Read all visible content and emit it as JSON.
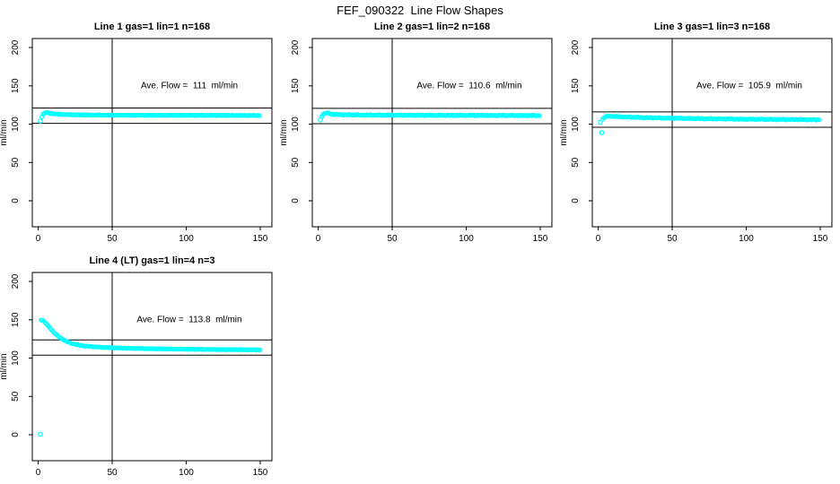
{
  "page_title": "FEF_090322  Line Flow Shapes",
  "colors": {
    "points": "#00ffff",
    "axis": "#000000",
    "background": "#ffffff"
  },
  "chart_data": [
    {
      "type": "scatter",
      "title": "Line 1 gas=1 lin=1 n=168",
      "annotation": "Ave. Flow =  111  ml/min",
      "ave_flow": 111,
      "n": 168,
      "xlabel": "",
      "ylabel": "ml/min",
      "xlim": [
        0,
        150
      ],
      "ylim": [
        0,
        200
      ],
      "xticks": [
        0,
        50,
        100,
        150
      ],
      "yticks": [
        0,
        50,
        100,
        150,
        200
      ],
      "vline_x": 50,
      "hlines": [
        121,
        101
      ],
      "curve_keypoints": [
        [
          2.5,
          110
        ],
        [
          3.5,
          113.5
        ],
        [
          5,
          115
        ],
        [
          7,
          114.6
        ],
        [
          9,
          113.9
        ],
        [
          12,
          113.2
        ],
        [
          16,
          112.7
        ],
        [
          22,
          112.3
        ],
        [
          30,
          112
        ],
        [
          45,
          111.8
        ],
        [
          70,
          111.6
        ],
        [
          100,
          111.5
        ],
        [
          130,
          111.4
        ],
        [
          150,
          111.3
        ]
      ],
      "markers": [
        [
          1.5,
          104
        ]
      ],
      "jitter": 0.35
    },
    {
      "type": "scatter",
      "title": "Line 2 gas=1 lin=2 n=168",
      "annotation": "Ave. Flow =  110.6  ml/min",
      "ave_flow": 110.6,
      "n": 168,
      "xlabel": "",
      "ylabel": "ml/min",
      "xlim": [
        0,
        150
      ],
      "ylim": [
        0,
        200
      ],
      "xticks": [
        0,
        50,
        100,
        150
      ],
      "yticks": [
        0,
        50,
        100,
        150,
        200
      ],
      "vline_x": 50,
      "hlines": [
        120.6,
        100.6
      ],
      "curve_keypoints": [
        [
          2.5,
          110.5
        ],
        [
          4,
          113.8
        ],
        [
          5.5,
          114.6
        ],
        [
          7,
          114.1
        ],
        [
          9,
          113.3
        ],
        [
          12,
          112.7
        ],
        [
          18,
          112.2
        ],
        [
          30,
          111.9
        ],
        [
          50,
          111.7
        ],
        [
          80,
          111.5
        ],
        [
          110,
          111.4
        ],
        [
          150,
          111.2
        ]
      ],
      "markers": [
        [
          1.5,
          105.5
        ]
      ],
      "jitter": 0.55
    },
    {
      "type": "scatter",
      "title": "Line 3 gas=1 lin=3 n=168",
      "annotation": "Ave. Flow =  105.9  ml/min",
      "ave_flow": 105.9,
      "n": 168,
      "xlabel": "",
      "ylabel": "ml/min",
      "xlim": [
        0,
        150
      ],
      "ylim": [
        0,
        200
      ],
      "xticks": [
        0,
        50,
        100,
        150
      ],
      "yticks": [
        0,
        50,
        100,
        150,
        200
      ],
      "vline_x": 50,
      "hlines": [
        115.9,
        95.9
      ],
      "curve_keypoints": [
        [
          3,
          106.5
        ],
        [
          4,
          108.5
        ],
        [
          5.5,
          110
        ],
        [
          8,
          110.4
        ],
        [
          12,
          109.9
        ],
        [
          18,
          109.4
        ],
        [
          28,
          108.7
        ],
        [
          40,
          108.1
        ],
        [
          55,
          107.6
        ],
        [
          75,
          107
        ],
        [
          100,
          106.5
        ],
        [
          125,
          106.1
        ],
        [
          150,
          105.8
        ]
      ],
      "markers": [
        [
          1.5,
          102.5
        ],
        [
          2.5,
          89
        ]
      ],
      "jitter": 0.45
    },
    {
      "type": "scatter",
      "title": "Line 4 (LT) gas=1 lin=4 n=3",
      "annotation": "Ave. Flow =  113.8  ml/min",
      "ave_flow": 113.8,
      "n": 3,
      "xlabel": "",
      "ylabel": "ml/min",
      "xlim": [
        0,
        150
      ],
      "ylim": [
        0,
        200
      ],
      "xticks": [
        0,
        50,
        100,
        150
      ],
      "yticks": [
        0,
        50,
        100,
        150,
        200
      ],
      "vline_x": 50,
      "hlines": [
        123.8,
        103.8
      ],
      "curve_keypoints": [
        [
          2,
          149.8
        ],
        [
          3,
          149.3
        ],
        [
          4,
          147.8
        ],
        [
          5,
          146
        ],
        [
          6,
          143.8
        ],
        [
          7,
          141.4
        ],
        [
          8,
          139
        ],
        [
          9,
          136.8
        ],
        [
          10,
          134.8
        ],
        [
          11,
          132.9
        ],
        [
          12,
          131.1
        ],
        [
          13,
          129.4
        ],
        [
          14,
          127.9
        ],
        [
          15,
          126.5
        ],
        [
          16,
          125.2
        ],
        [
          17,
          124
        ],
        [
          18,
          122.9
        ],
        [
          19,
          121.9
        ],
        [
          20,
          121
        ],
        [
          22,
          119.5
        ],
        [
          24,
          118.4
        ],
        [
          26,
          117.5
        ],
        [
          28,
          116.8
        ],
        [
          30,
          116.2
        ],
        [
          33,
          115.5
        ],
        [
          36,
          115
        ],
        [
          40,
          114.4
        ],
        [
          45,
          113.9
        ],
        [
          50,
          113.5
        ],
        [
          55,
          113.1
        ],
        [
          60,
          112.8
        ],
        [
          70,
          112.4
        ],
        [
          80,
          112.1
        ],
        [
          90,
          111.8
        ],
        [
          100,
          111.6
        ],
        [
          110,
          111.4
        ],
        [
          120,
          111.2
        ],
        [
          135,
          111
        ],
        [
          150,
          110.8
        ]
      ],
      "markers": [
        [
          1.5,
          0.5
        ]
      ],
      "jitter": 0.3
    }
  ]
}
